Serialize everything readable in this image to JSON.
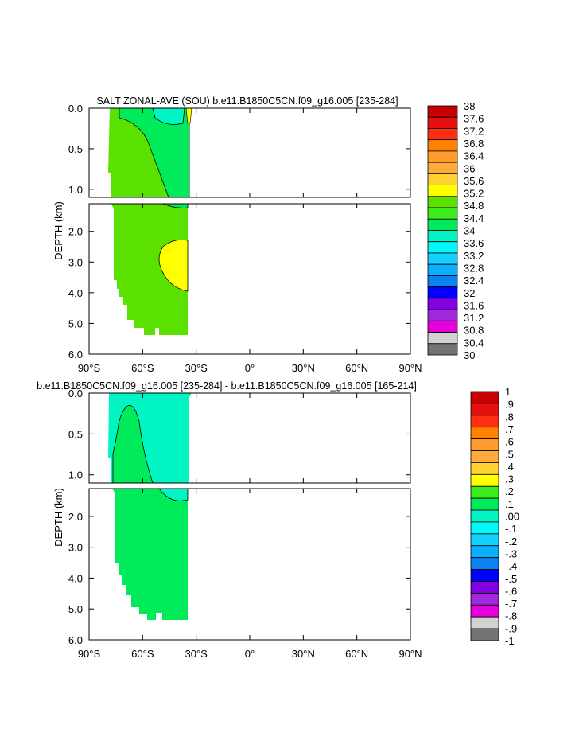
{
  "chart_data": [
    {
      "type": "heatmap",
      "title": "SALT ZONAL-AVE (SOU) b.e11.B1850C5CN.f09_g16.005 [235-284]",
      "ylabel": "DEPTH (km)",
      "x_ticks": [
        "90°S",
        "60°S",
        "30°S",
        "0°",
        "30°N",
        "60°N",
        "90°N"
      ],
      "x_tick_values": [
        -90,
        -60,
        -30,
        0,
        30,
        60,
        90
      ],
      "xlim": [
        -90,
        90
      ],
      "y_ticks_upper": [
        "0.0",
        "0.5",
        "1.0"
      ],
      "y_ticks_upper_values": [
        0,
        0.5,
        1.0
      ],
      "y_ticks_lower": [
        "2.0",
        "3.0",
        "4.0",
        "5.0",
        "6.0"
      ],
      "y_ticks_lower_values": [
        2,
        3,
        4,
        5,
        6
      ],
      "ylim_upper": [
        0,
        1.1
      ],
      "ylim_lower": [
        1.1,
        6
      ],
      "colorbar": {
        "labels": [
          "38",
          "37.6",
          "37.2",
          "36.8",
          "36.4",
          "36",
          "35.6",
          "35.2",
          "34.8",
          "34.4",
          "34",
          "33.6",
          "33.2",
          "32.8",
          "32.4",
          "32",
          "31.6",
          "31.2",
          "30.8",
          "30.4",
          "30"
        ],
        "colors": [
          "#c80000",
          "#e60f0f",
          "#ff2d12",
          "#ff8200",
          "#ff9b2d",
          "#ffaa3c",
          "#ffd232",
          "#ffff00",
          "#5ae100",
          "#3ceb1e",
          "#00eb5a",
          "#00f5c3",
          "#00fafa",
          "#14d2ff",
          "#0aafff",
          "#0a82f0",
          "#0000ff",
          "#8200e1",
          "#a028dc",
          "#e600dc",
          "#d2d2d2",
          "#737373"
        ]
      },
      "regions": [
        {
          "name": "lower-green",
          "value_range": "34.4-34.8"
        },
        {
          "name": "mid-green",
          "value_range": "34-34.4"
        },
        {
          "name": "cyan",
          "value_range": "33.6-34"
        },
        {
          "name": "yellow-surface",
          "value_range": "34.8-35.2"
        },
        {
          "name": "yellow-deep",
          "value_range": "34.8-35.2"
        }
      ]
    },
    {
      "type": "heatmap",
      "title": "b.e11.B1850C5CN.f09_g16.005 [235-284] - b.e11.B1850C5CN.f09_g16.005 [165-214]",
      "ylabel": "DEPTH (km)",
      "x_ticks": [
        "90°S",
        "60°S",
        "30°S",
        "0°",
        "30°N",
        "60°N",
        "90°N"
      ],
      "x_tick_values": [
        -90,
        -60,
        -30,
        0,
        30,
        60,
        90
      ],
      "xlim": [
        -90,
        90
      ],
      "y_ticks_upper": [
        "0.0",
        "0.5",
        "1.0"
      ],
      "y_ticks_upper_values": [
        0,
        0.5,
        1.0
      ],
      "y_ticks_lower": [
        "2.0",
        "3.0",
        "4.0",
        "5.0",
        "6.0"
      ],
      "y_ticks_lower_values": [
        2,
        3,
        4,
        5,
        6
      ],
      "ylim_upper": [
        0,
        1.1
      ],
      "ylim_lower": [
        1.1,
        6
      ],
      "colorbar": {
        "labels": [
          "1",
          ".9",
          ".8",
          ".7",
          ".6",
          ".5",
          ".4",
          ".3",
          ".2",
          ".1",
          ".00",
          "-.1",
          "-.2",
          "-.3",
          "-.4",
          "-.5",
          "-.6",
          "-.7",
          "-.8",
          "-.9",
          "-1"
        ],
        "colors": [
          "#c80000",
          "#e60f0f",
          "#ff2d12",
          "#ff8200",
          "#ff9b2d",
          "#ffaa3c",
          "#ffd232",
          "#ffff00",
          "#3ceb1e",
          "#00eb5a",
          "#00f5c3",
          "#00fafa",
          "#14d2ff",
          "#0aafff",
          "#0a82f0",
          "#0000ff",
          "#8200e1",
          "#a028dc",
          "#e600dc",
          "#d2d2d2",
          "#737373"
        ]
      },
      "regions": [
        {
          "name": "green",
          "value_range": ".00-.1"
        },
        {
          "name": "cyan",
          "value_range": "-.1-.00"
        }
      ]
    }
  ]
}
